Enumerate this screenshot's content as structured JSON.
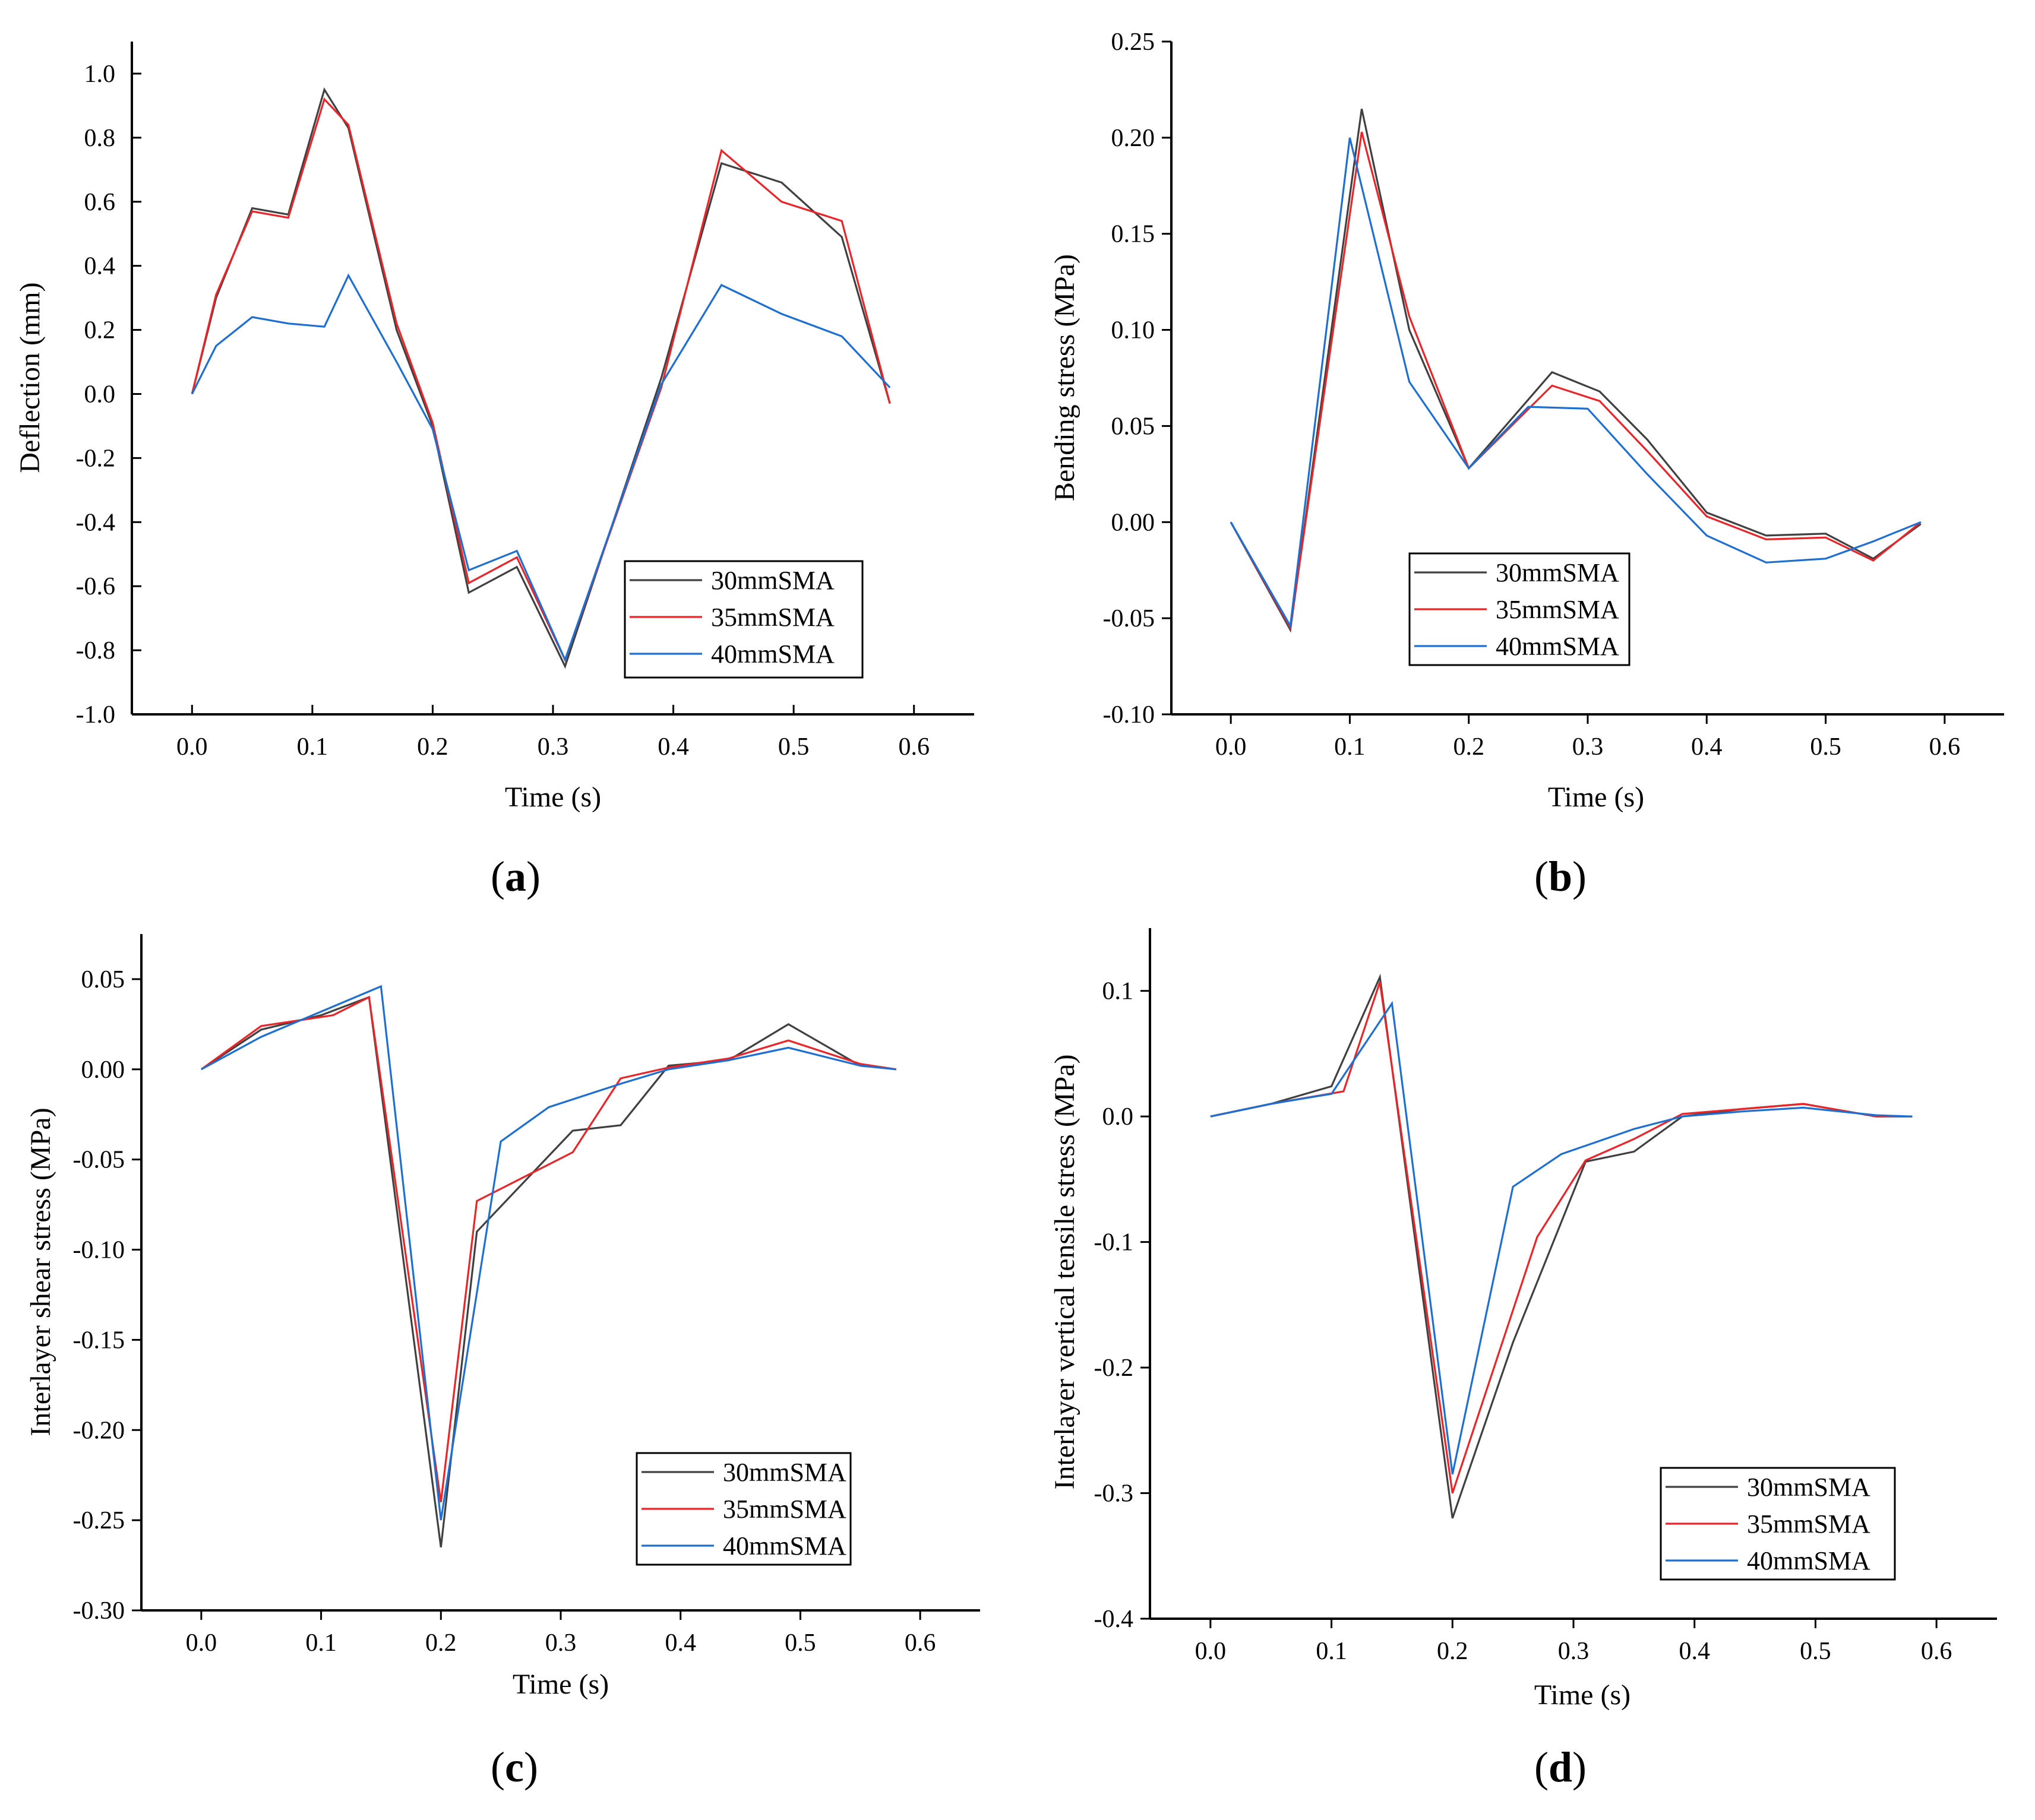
{
  "figure": {
    "panel_labels": [
      "(a)",
      "(b)",
      "(c)",
      "(d)"
    ]
  },
  "chart_data": [
    {
      "id": "a",
      "type": "line",
      "panel_label": "(a)",
      "xlabel": "Time (s)",
      "ylabel": "Deflection (mm)",
      "xlim": [
        -0.05,
        0.65
      ],
      "ylim": [
        -1.0,
        1.1
      ],
      "xticks": [
        0.0,
        0.1,
        0.2,
        0.3,
        0.4,
        0.5,
        0.6
      ],
      "xtick_labels": [
        "0.0",
        "0.1",
        "0.2",
        "0.3",
        "0.4",
        "0.5",
        "0.6"
      ],
      "yticks": [
        -1.0,
        -0.8,
        -0.6,
        -0.4,
        -0.2,
        0.0,
        0.2,
        0.4,
        0.6,
        0.8,
        1.0
      ],
      "ytick_labels": [
        "-1.0",
        "-0.8",
        "-0.6",
        "-0.4",
        "-0.2",
        "0.0",
        "0.2",
        "0.4",
        "0.6",
        "0.8",
        "1.0"
      ],
      "legend_position": "bottom-right",
      "series": [
        {
          "name": "30mmSMA",
          "color": "#404040",
          "x": [
            0.0,
            0.02,
            0.05,
            0.08,
            0.11,
            0.13,
            0.17,
            0.2,
            0.23,
            0.27,
            0.31,
            0.39,
            0.44,
            0.49,
            0.54,
            0.58
          ],
          "y": [
            0.0,
            0.3,
            0.58,
            0.56,
            0.95,
            0.83,
            0.2,
            -0.1,
            -0.62,
            -0.54,
            -0.85,
            0.05,
            0.72,
            0.66,
            0.49,
            -0.03
          ]
        },
        {
          "name": "35mmSMA",
          "color": "#e8262a",
          "x": [
            0.0,
            0.02,
            0.05,
            0.08,
            0.11,
            0.13,
            0.17,
            0.2,
            0.23,
            0.27,
            0.31,
            0.39,
            0.44,
            0.49,
            0.54,
            0.58
          ],
          "y": [
            0.0,
            0.31,
            0.57,
            0.55,
            0.92,
            0.84,
            0.22,
            -0.09,
            -0.59,
            -0.51,
            -0.83,
            0.02,
            0.76,
            0.6,
            0.54,
            -0.03
          ]
        },
        {
          "name": "40mmSMA",
          "color": "#1f6fd0",
          "x": [
            0.0,
            0.02,
            0.05,
            0.08,
            0.11,
            0.13,
            0.17,
            0.2,
            0.23,
            0.27,
            0.31,
            0.39,
            0.44,
            0.49,
            0.54,
            0.58
          ],
          "y": [
            0.0,
            0.15,
            0.24,
            0.22,
            0.21,
            0.37,
            0.1,
            -0.11,
            -0.55,
            -0.49,
            -0.83,
            0.03,
            0.34,
            0.25,
            0.18,
            0.02
          ]
        }
      ]
    },
    {
      "id": "b",
      "type": "line",
      "panel_label": "(b)",
      "xlabel": "Time (s)",
      "ylabel": "Bending stress (MPa)",
      "xlim": [
        -0.05,
        0.65
      ],
      "ylim": [
        -0.1,
        0.25
      ],
      "xticks": [
        0.0,
        0.1,
        0.2,
        0.3,
        0.4,
        0.5,
        0.6
      ],
      "xtick_labels": [
        "0.0",
        "0.1",
        "0.2",
        "0.3",
        "0.4",
        "0.5",
        "0.6"
      ],
      "yticks": [
        -0.1,
        -0.05,
        0.0,
        0.05,
        0.1,
        0.15,
        0.2,
        0.25
      ],
      "ytick_labels": [
        "-0.10",
        "-0.05",
        "0.00",
        "0.05",
        "0.10",
        "0.15",
        "0.20",
        "0.25"
      ],
      "legend_position": "bottom-right",
      "series": [
        {
          "name": "30mmSMA",
          "color": "#404040",
          "x": [
            0.0,
            0.05,
            0.11,
            0.15,
            0.2,
            0.27,
            0.31,
            0.35,
            0.4,
            0.45,
            0.5,
            0.54,
            0.58
          ],
          "y": [
            0.0,
            -0.056,
            0.215,
            0.1,
            0.028,
            0.078,
            0.068,
            0.043,
            0.005,
            -0.007,
            -0.006,
            -0.019,
            -0.001
          ]
        },
        {
          "name": "35mmSMA",
          "color": "#e8262a",
          "x": [
            0.0,
            0.05,
            0.11,
            0.15,
            0.2,
            0.27,
            0.31,
            0.35,
            0.4,
            0.45,
            0.5,
            0.54,
            0.58
          ],
          "y": [
            0.0,
            -0.055,
            0.203,
            0.107,
            0.028,
            0.071,
            0.063,
            0.037,
            0.003,
            -0.009,
            -0.008,
            -0.02,
            0.0
          ]
        },
        {
          "name": "40mmSMA",
          "color": "#1f6fd0",
          "x": [
            0.0,
            0.05,
            0.1,
            0.15,
            0.2,
            0.25,
            0.3,
            0.35,
            0.4,
            0.45,
            0.5,
            0.54,
            0.58
          ],
          "y": [
            0.0,
            -0.054,
            0.2,
            0.073,
            0.028,
            0.06,
            0.059,
            0.025,
            -0.007,
            -0.021,
            -0.019,
            -0.01,
            0.0
          ]
        }
      ]
    },
    {
      "id": "c",
      "type": "line",
      "panel_label": "(c)",
      "xlabel": "Time (s)",
      "ylabel": "Interlayer shear stress (MPa)",
      "xlim": [
        -0.05,
        0.65
      ],
      "ylim": [
        -0.3,
        0.075
      ],
      "xticks": [
        0.0,
        0.1,
        0.2,
        0.3,
        0.4,
        0.5,
        0.6
      ],
      "xtick_labels": [
        "0.0",
        "0.1",
        "0.2",
        "0.3",
        "0.4",
        "0.5",
        "0.6"
      ],
      "yticks": [
        -0.3,
        -0.25,
        -0.2,
        -0.15,
        -0.1,
        -0.05,
        0.0,
        0.05
      ],
      "ytick_labels": [
        "-0.30",
        "-0.25",
        "-0.20",
        "-0.15",
        "-0.10",
        "-0.05",
        "0.00",
        "0.05"
      ],
      "legend_position": "bottom-right",
      "series": [
        {
          "name": "30mmSMA",
          "color": "#404040",
          "x": [
            0.0,
            0.05,
            0.1,
            0.14,
            0.2,
            0.23,
            0.31,
            0.35,
            0.39,
            0.44,
            0.49,
            0.55,
            0.58
          ],
          "y": [
            0.0,
            0.022,
            0.03,
            0.04,
            -0.265,
            -0.09,
            -0.034,
            -0.031,
            0.002,
            0.005,
            0.025,
            0.002,
            0.0
          ]
        },
        {
          "name": "35mmSMA",
          "color": "#e8262a",
          "x": [
            0.0,
            0.05,
            0.11,
            0.14,
            0.2,
            0.23,
            0.31,
            0.35,
            0.39,
            0.44,
            0.49,
            0.55,
            0.58
          ],
          "y": [
            0.0,
            0.024,
            0.03,
            0.04,
            -0.24,
            -0.073,
            -0.046,
            -0.005,
            0.001,
            0.006,
            0.016,
            0.003,
            0.0
          ]
        },
        {
          "name": "40mmSMA",
          "color": "#1f6fd0",
          "x": [
            0.0,
            0.05,
            0.1,
            0.15,
            0.2,
            0.25,
            0.29,
            0.35,
            0.39,
            0.44,
            0.49,
            0.55,
            0.58
          ],
          "y": [
            0.0,
            0.018,
            0.032,
            0.046,
            -0.25,
            -0.04,
            -0.021,
            -0.008,
            0.0,
            0.005,
            0.012,
            0.002,
            0.0
          ]
        }
      ]
    },
    {
      "id": "d",
      "type": "line",
      "panel_label": "(d)",
      "xlabel": "Time (s)",
      "ylabel": "Interlayer vertical tensile stress (MPa)",
      "xlim": [
        -0.05,
        0.65
      ],
      "ylim": [
        -0.4,
        0.15
      ],
      "xticks": [
        0.0,
        0.1,
        0.2,
        0.3,
        0.4,
        0.5,
        0.6
      ],
      "xtick_labels": [
        "0.0",
        "0.1",
        "0.2",
        "0.3",
        "0.4",
        "0.5",
        "0.6"
      ],
      "yticks": [
        -0.4,
        -0.3,
        -0.2,
        -0.1,
        0.0,
        0.1
      ],
      "ytick_labels": [
        "-0.4",
        "-0.3",
        "-0.2",
        "-0.1",
        "0.0",
        "0.1"
      ],
      "legend_position": "bottom-right",
      "series": [
        {
          "name": "30mmSMA",
          "color": "#404040",
          "x": [
            0.0,
            0.05,
            0.1,
            0.14,
            0.2,
            0.25,
            0.31,
            0.35,
            0.39,
            0.44,
            0.49,
            0.55,
            0.58
          ],
          "y": [
            0.0,
            0.01,
            0.024,
            0.111,
            -0.32,
            -0.18,
            -0.036,
            -0.028,
            0.0,
            0.006,
            0.01,
            0.0,
            0.0
          ]
        },
        {
          "name": "35mmSMA",
          "color": "#e8262a",
          "x": [
            0.0,
            0.05,
            0.11,
            0.14,
            0.2,
            0.27,
            0.31,
            0.35,
            0.39,
            0.44,
            0.49,
            0.55,
            0.58
          ],
          "y": [
            0.0,
            0.01,
            0.02,
            0.107,
            -0.3,
            -0.096,
            -0.035,
            -0.018,
            0.002,
            0.006,
            0.01,
            0.0,
            0.0
          ]
        },
        {
          "name": "40mmSMA",
          "color": "#1f6fd0",
          "x": [
            0.0,
            0.05,
            0.1,
            0.15,
            0.2,
            0.25,
            0.29,
            0.35,
            0.39,
            0.44,
            0.49,
            0.55,
            0.58
          ],
          "y": [
            0.0,
            0.01,
            0.018,
            0.09,
            -0.285,
            -0.056,
            -0.03,
            -0.01,
            0.0,
            0.004,
            0.007,
            0.001,
            0.0
          ]
        }
      ]
    }
  ]
}
